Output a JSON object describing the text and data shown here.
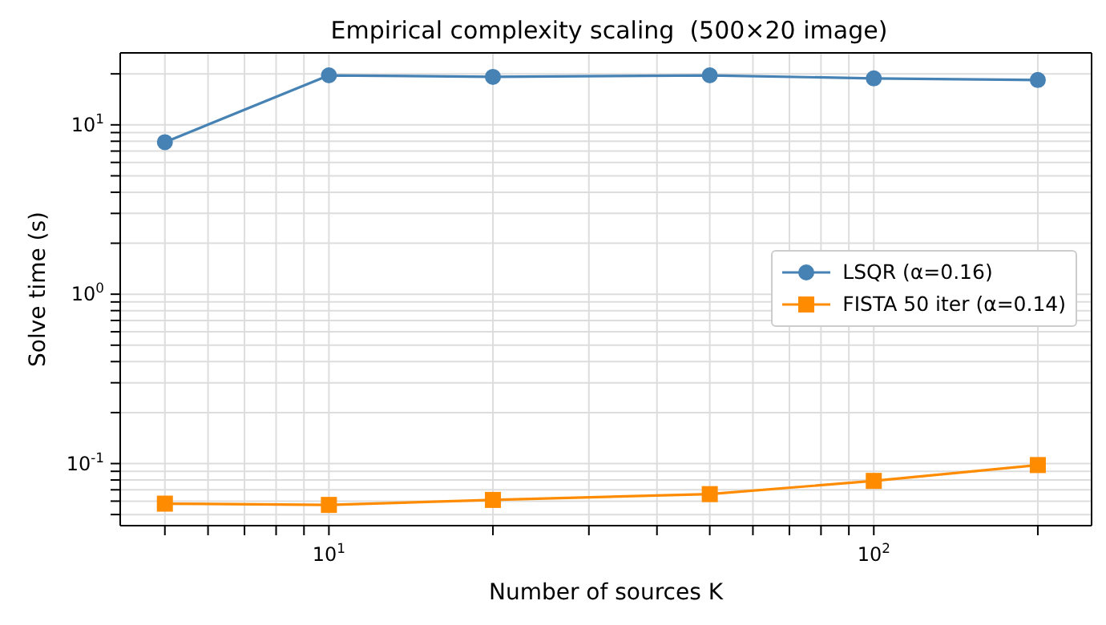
{
  "chart_data": {
    "type": "line",
    "title": "Empirical complexity scaling  (500×20 image)",
    "xlabel": "Number of sources K",
    "ylabel": "Solve time (s)",
    "log": "xy",
    "grid": true,
    "legend": "right",
    "x": [
      5,
      10,
      20,
      50,
      100,
      200
    ],
    "xlim": [
      4.14,
      251
    ],
    "xticks": [
      {
        "value": 5,
        "label": null
      },
      {
        "value": 6,
        "label": null
      },
      {
        "value": 7,
        "label": null
      },
      {
        "value": 8,
        "label": null
      },
      {
        "value": 9,
        "label": null
      },
      {
        "value": 10,
        "label": "10$^{1}$"
      },
      {
        "value": 20,
        "label": null
      },
      {
        "value": 30,
        "label": null
      },
      {
        "value": 40,
        "label": null
      },
      {
        "value": 50,
        "label": null
      },
      {
        "value": 60,
        "label": null
      },
      {
        "value": 70,
        "label": null
      },
      {
        "value": 80,
        "label": null
      },
      {
        "value": 90,
        "label": null
      },
      {
        "value": 100,
        "label": "10$^{2}$"
      },
      {
        "value": 200,
        "label": null
      }
    ],
    "ylim": [
      0.043,
      26.6
    ],
    "yticks": [
      {
        "value": 0.05,
        "label": null
      },
      {
        "value": 0.06,
        "label": null
      },
      {
        "value": 0.07,
        "label": null
      },
      {
        "value": 0.08,
        "label": null
      },
      {
        "value": 0.09,
        "label": null
      },
      {
        "value": 0.1,
        "label": "10$^{-1}$"
      },
      {
        "value": 0.2,
        "label": null
      },
      {
        "value": 0.3,
        "label": null
      },
      {
        "value": 0.4,
        "label": null
      },
      {
        "value": 0.5,
        "label": null
      },
      {
        "value": 0.6,
        "label": null
      },
      {
        "value": 0.7,
        "label": null
      },
      {
        "value": 0.8,
        "label": null
      },
      {
        "value": 0.9,
        "label": null
      },
      {
        "value": 1,
        "label": "10$^{0}$"
      },
      {
        "value": 2,
        "label": null
      },
      {
        "value": 3,
        "label": null
      },
      {
        "value": 4,
        "label": null
      },
      {
        "value": 5,
        "label": null
      },
      {
        "value": 6,
        "label": null
      },
      {
        "value": 7,
        "label": null
      },
      {
        "value": 8,
        "label": null
      },
      {
        "value": 9,
        "label": null
      },
      {
        "value": 10,
        "label": "10$^{1}$"
      },
      {
        "value": 20,
        "label": null
      }
    ],
    "series": [
      {
        "name": "LSQR (α=0.16)",
        "color": "#4682b4",
        "marker": "circle",
        "values": [
          7.9,
          19.6,
          19.2,
          19.6,
          18.8,
          18.4
        ]
      },
      {
        "name": "FISTA 50 iter (α=0.14)",
        "color": "#ff8c00",
        "marker": "square",
        "values": [
          0.058,
          0.057,
          0.061,
          0.066,
          0.079,
          0.098
        ]
      }
    ]
  }
}
